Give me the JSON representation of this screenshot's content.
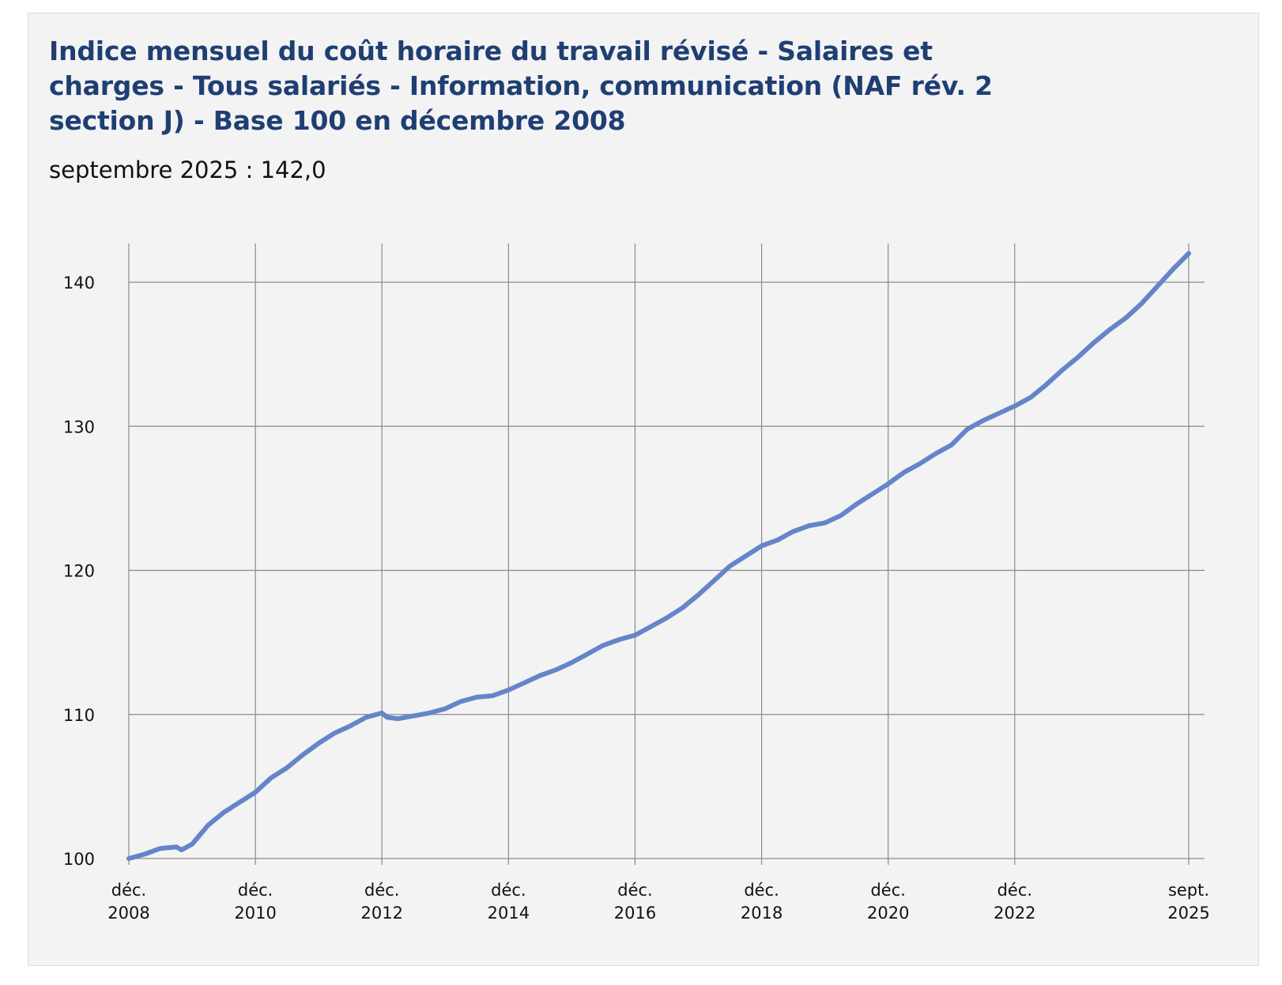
{
  "colors": {
    "title": "#1f3f73",
    "line": "#6485c9",
    "grid": "#8a8a8a",
    "background": "#f3f3f3"
  },
  "chart_data": {
    "type": "line",
    "title": "Indice mensuel du coût horaire du travail révisé - Salaires et charges - Tous salariés - Information, communication (NAF rév. 2 section J) - Base 100 en décembre 2008",
    "subtitle": "septembre 2025 : 142,0",
    "xlabel": "",
    "ylabel": "",
    "ylim": [
      100,
      142
    ],
    "xlim": [
      "2008-12",
      "2025-09"
    ],
    "grid": true,
    "y_ticks": [
      100,
      110,
      120,
      130,
      140
    ],
    "x_ticks": [
      {
        "date": "2008-12",
        "line1": "déc.",
        "line2": "2008"
      },
      {
        "date": "2010-12",
        "line1": "déc.",
        "line2": "2010"
      },
      {
        "date": "2012-12",
        "line1": "déc.",
        "line2": "2012"
      },
      {
        "date": "2014-12",
        "line1": "déc.",
        "line2": "2014"
      },
      {
        "date": "2016-12",
        "line1": "déc.",
        "line2": "2016"
      },
      {
        "date": "2018-12",
        "line1": "déc.",
        "line2": "2018"
      },
      {
        "date": "2020-12",
        "line1": "déc.",
        "line2": "2020"
      },
      {
        "date": "2022-12",
        "line1": "déc.",
        "line2": "2022"
      },
      {
        "date": "2025-09",
        "line1": "sept.",
        "line2": "2025"
      }
    ],
    "series": [
      {
        "name": "Indice",
        "points": [
          [
            "2008-12",
            100.0
          ],
          [
            "2009-03",
            100.3
          ],
          [
            "2009-06",
            100.7
          ],
          [
            "2009-09",
            100.8
          ],
          [
            "2009-10",
            100.6
          ],
          [
            "2009-12",
            101.0
          ],
          [
            "2010-03",
            102.3
          ],
          [
            "2010-06",
            103.2
          ],
          [
            "2010-09",
            103.9
          ],
          [
            "2010-12",
            104.6
          ],
          [
            "2011-03",
            105.6
          ],
          [
            "2011-06",
            106.3
          ],
          [
            "2011-09",
            107.2
          ],
          [
            "2011-12",
            108.0
          ],
          [
            "2012-03",
            108.7
          ],
          [
            "2012-06",
            109.2
          ],
          [
            "2012-09",
            109.8
          ],
          [
            "2012-12",
            110.1
          ],
          [
            "2013-01",
            109.8
          ],
          [
            "2013-03",
            109.7
          ],
          [
            "2013-06",
            109.9
          ],
          [
            "2013-09",
            110.1
          ],
          [
            "2013-12",
            110.4
          ],
          [
            "2014-03",
            110.9
          ],
          [
            "2014-06",
            111.2
          ],
          [
            "2014-09",
            111.3
          ],
          [
            "2014-12",
            111.7
          ],
          [
            "2015-03",
            112.2
          ],
          [
            "2015-06",
            112.7
          ],
          [
            "2015-09",
            113.1
          ],
          [
            "2015-12",
            113.6
          ],
          [
            "2016-03",
            114.2
          ],
          [
            "2016-06",
            114.8
          ],
          [
            "2016-09",
            115.2
          ],
          [
            "2016-12",
            115.5
          ],
          [
            "2017-03",
            116.1
          ],
          [
            "2017-06",
            116.7
          ],
          [
            "2017-09",
            117.4
          ],
          [
            "2017-12",
            118.3
          ],
          [
            "2018-03",
            119.3
          ],
          [
            "2018-06",
            120.3
          ],
          [
            "2018-09",
            121.0
          ],
          [
            "2018-12",
            121.7
          ],
          [
            "2019-03",
            122.1
          ],
          [
            "2019-06",
            122.7
          ],
          [
            "2019-09",
            123.1
          ],
          [
            "2019-12",
            123.3
          ],
          [
            "2020-03",
            123.8
          ],
          [
            "2020-06",
            124.6
          ],
          [
            "2020-09",
            125.3
          ],
          [
            "2020-12",
            126.0
          ],
          [
            "2021-03",
            126.8
          ],
          [
            "2021-06",
            127.4
          ],
          [
            "2021-09",
            128.1
          ],
          [
            "2021-12",
            128.7
          ],
          [
            "2022-03",
            129.8
          ],
          [
            "2022-06",
            130.4
          ],
          [
            "2022-09",
            130.9
          ],
          [
            "2022-12",
            131.4
          ],
          [
            "2023-03",
            132.0
          ],
          [
            "2023-06",
            132.9
          ],
          [
            "2023-09",
            133.9
          ],
          [
            "2023-12",
            134.8
          ],
          [
            "2024-03",
            135.8
          ],
          [
            "2024-06",
            136.7
          ],
          [
            "2024-09",
            137.5
          ],
          [
            "2024-12",
            138.5
          ],
          [
            "2025-03",
            139.7
          ],
          [
            "2025-06",
            140.9
          ],
          [
            "2025-09",
            142.0
          ]
        ]
      }
    ]
  }
}
